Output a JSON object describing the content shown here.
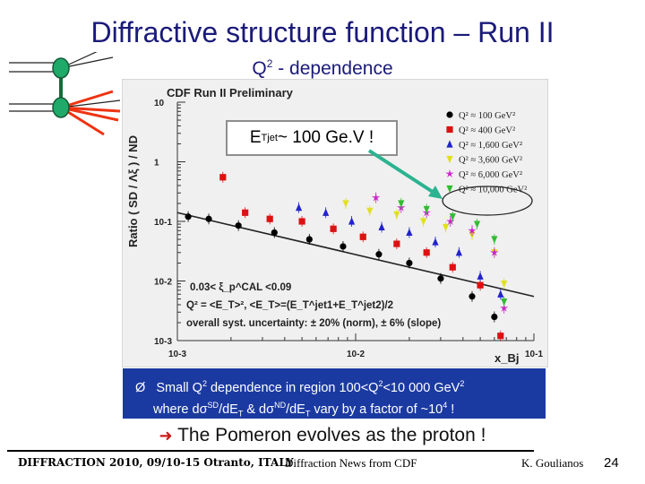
{
  "slide": {
    "title": "Diffractive structure function – Run II",
    "subtitle_q": "Q",
    "subtitle_exp": "2",
    "subtitle_rest": " - dependence",
    "callout_e": "E",
    "callout_sub": "T",
    "callout_sup": "jet",
    "callout_rest": " ~ 100 Ge.V !",
    "bullet_marker": "Ø",
    "bullet_line1_a": "Small Q",
    "bullet_line1_b": "2",
    "bullet_line1_c": " dependence in region 100<Q",
    "bullet_line1_d": "2",
    "bullet_line1_e": "<10 000 GeV",
    "bullet_line1_f": "2",
    "bullet_line2_a": "where d",
    "bullet_line2_sigma1": "σ",
    "bullet_line2_b": "SD",
    "bullet_line2_c": "/dE",
    "bullet_line2_d": "T",
    "bullet_line2_e": " & d",
    "bullet_line2_sigma2": "σ",
    "bullet_line2_f": "ND",
    "bullet_line2_g": "/dE",
    "bullet_line2_h": "T",
    "bullet_line2_i": " vary by a factor of ~10",
    "bullet_line2_j": "4",
    "bullet_line2_k": " !",
    "pomeron_arrow": "è",
    "pomeron_text": " The Pomeron evolves as the proton !",
    "footer_left": "DIFFRACTION 2010, 09/10-15 Otranto, ITALY",
    "footer_mid": "Diffraction News from CDF",
    "footer_right": "K. Goulianos",
    "page_number": "24"
  },
  "chart_data": {
    "type": "scatter",
    "title": "CDF Run II Preliminary",
    "xlabel": "x_Bj",
    "ylabel": "Ratio ( SD / Λξ ) / ND",
    "xscale": "log",
    "yscale": "log",
    "xlim": [
      0.001,
      0.1
    ],
    "ylim": [
      0.001,
      10
    ],
    "xticks": [
      "10-3",
      "10-2",
      "10-1"
    ],
    "yticks": [
      "10",
      "1",
      "10-1",
      "10-2",
      "10-3"
    ],
    "legend_position": "top-right",
    "annotations": [
      "0.03< ξ_p^CAL <0.09",
      "Q² = <E_T>², <E_T>=(E_T^jet1+E_T^jet2)/2",
      "overall syst. uncertainty: ± 20% (norm), ± 6% (slope)"
    ],
    "fit_line": {
      "x": [
        0.001,
        0.1
      ],
      "y": [
        0.14,
        0.0055
      ],
      "color": "#222222"
    },
    "series": [
      {
        "name": "Q² ≈ 100 GeV²",
        "marker": "circle",
        "color": "#000000",
        "x": [
          0.00115,
          0.0015,
          0.0022,
          0.0035,
          0.0055,
          0.0085,
          0.0135,
          0.02,
          0.03,
          0.045,
          0.06
        ],
        "y": [
          0.12,
          0.11,
          0.085,
          0.065,
          0.05,
          0.038,
          0.028,
          0.02,
          0.011,
          0.0055,
          0.0025
        ]
      },
      {
        "name": "Q² ≈ 400 GeV²",
        "marker": "square",
        "color": "#dd1111",
        "x": [
          0.0018,
          0.0024,
          0.0033,
          0.005,
          0.0075,
          0.011,
          0.017,
          0.025,
          0.035,
          0.05,
          0.065
        ],
        "y": [
          0.55,
          0.14,
          0.11,
          0.1,
          0.075,
          0.055,
          0.042,
          0.03,
          0.017,
          0.0085,
          0.0012
        ]
      },
      {
        "name": "Q² ≈ 1,600 GeV²",
        "marker": "triangle-up",
        "color": "#2222cc",
        "x": [
          0.0048,
          0.0068,
          0.0095,
          0.014,
          0.02,
          0.028,
          0.038,
          0.05,
          0.065
        ],
        "y": [
          0.17,
          0.14,
          0.1,
          0.08,
          0.065,
          0.045,
          0.03,
          0.012,
          0.006
        ]
      },
      {
        "name": "Q² ≈ 3,600 GeV²",
        "marker": "triangle-down",
        "color": "#e0e020",
        "x": [
          0.0088,
          0.012,
          0.017,
          0.024,
          0.032,
          0.045,
          0.06,
          0.068
        ],
        "y": [
          0.2,
          0.15,
          0.13,
          0.1,
          0.08,
          0.06,
          0.03,
          0.009
        ]
      },
      {
        "name": "Q² ≈ 6,000 GeV²",
        "marker": "star",
        "color": "#cc22cc",
        "x": [
          0.013,
          0.018,
          0.025,
          0.034,
          0.045,
          0.06,
          0.068
        ],
        "y": [
          0.25,
          0.17,
          0.14,
          0.1,
          0.07,
          0.03,
          0.0035
        ]
      },
      {
        "name": "Q² ≈ 10,000 GeV²",
        "marker": "triangle-down",
        "color": "#33bb33",
        "x": [
          0.018,
          0.025,
          0.035,
          0.048,
          0.06,
          0.068
        ],
        "y": [
          0.2,
          0.16,
          0.12,
          0.09,
          0.05,
          0.0045
        ]
      }
    ]
  },
  "colors": {
    "title": "#1a1a7a",
    "bluebox": "#1b3aa1",
    "arrow": "#2bb390",
    "diagram_node": "#1faa6a",
    "diagram_red": "#ee3311"
  }
}
